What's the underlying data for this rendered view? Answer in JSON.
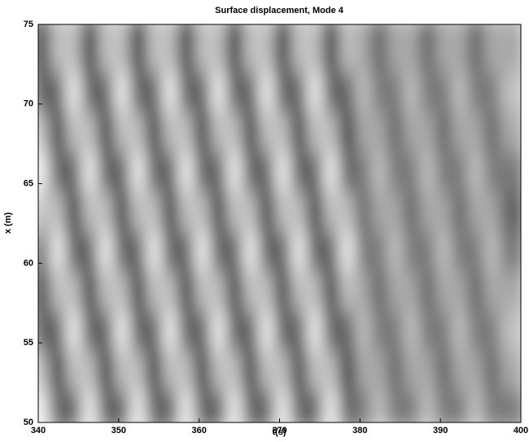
{
  "chart_data": {
    "type": "heatmap",
    "title": "Surface displacement, Mode 4",
    "xlabel": "t(s)",
    "ylabel": "x (m)",
    "x": [
      341,
      343,
      345,
      347,
      349,
      351,
      353,
      355,
      357,
      359,
      361,
      363,
      365,
      367,
      369,
      371,
      373,
      375,
      377,
      379,
      381,
      383,
      385,
      387,
      389,
      391,
      393,
      395,
      397,
      399
    ],
    "y": [
      51.25,
      53.75,
      56.25,
      58.75,
      61.25,
      63.75,
      66.25,
      68.75,
      71.25,
      73.75
    ],
    "z": [
      [
        1,
        -0.5,
        -0.5,
        1,
        -0.5,
        -0.5,
        1,
        -0.5,
        -0.5,
        1,
        -0.5,
        -0.5,
        1,
        -0.5,
        -0.5,
        1,
        -0.5,
        -0.5,
        1,
        -0.5,
        -0.25,
        0.5,
        -0.25,
        -0.25,
        0.5,
        -0.25,
        -0.25,
        0.5,
        -0.25,
        -0.25
      ],
      [
        0.5,
        -1,
        0.5,
        0.5,
        -1,
        0.5,
        0.5,
        -1,
        0.5,
        0.5,
        -1,
        0.5,
        0.5,
        -1,
        0.5,
        0.5,
        -1,
        0.5,
        0.5,
        -1,
        0.25,
        0.25,
        -0.5,
        0.25,
        0.25,
        -0.5,
        0.25,
        0.25,
        -0.5,
        0.25
      ],
      [
        -0.5,
        -0.5,
        1,
        -0.5,
        -0.5,
        1,
        -0.5,
        -0.5,
        1,
        -0.5,
        -0.5,
        1,
        -0.5,
        -0.5,
        1,
        -0.5,
        -0.5,
        1,
        -0.5,
        -0.5,
        0.5,
        -0.25,
        -0.25,
        0.5,
        -0.25,
        -0.25,
        0.5,
        -0.25,
        -0.25,
        0.5
      ],
      [
        -1,
        0.5,
        0.5,
        -1,
        0.5,
        0.5,
        -1,
        0.5,
        0.5,
        -1,
        0.5,
        0.5,
        -1,
        0.5,
        0.5,
        -1,
        0.5,
        0.5,
        -1,
        0.5,
        0.25,
        -0.5,
        0.25,
        0.25,
        -0.5,
        0.25,
        0.25,
        -0.5,
        0.25,
        0.25
      ],
      [
        -0.5,
        1,
        -0.5,
        -0.5,
        1,
        -0.5,
        -0.5,
        1,
        -0.5,
        -0.5,
        1,
        -0.5,
        -0.5,
        1,
        -0.5,
        -0.5,
        1,
        -0.5,
        -0.5,
        1,
        -0.25,
        -0.25,
        0.5,
        -0.25,
        -0.25,
        0.5,
        -0.25,
        -0.25,
        0.5,
        -0.25
      ],
      [
        0.5,
        0.5,
        -1,
        0.5,
        0.5,
        -1,
        0.5,
        0.5,
        -1,
        0.5,
        0.5,
        -1,
        0.5,
        0.5,
        -1,
        0.5,
        0.5,
        -1,
        0.5,
        0.5,
        -0.5,
        0.25,
        0.25,
        -0.5,
        0.25,
        0.25,
        -0.5,
        0.25,
        0.25,
        -0.5
      ],
      [
        1,
        -0.5,
        -0.5,
        1,
        -0.5,
        -0.5,
        1,
        -0.5,
        -0.5,
        1,
        -0.5,
        -0.5,
        1,
        -0.5,
        -0.5,
        1,
        -0.5,
        -0.5,
        1,
        -0.5,
        -0.25,
        0.5,
        -0.25,
        -0.25,
        0.5,
        -0.25,
        -0.25,
        0.5,
        -0.25,
        -0.25
      ],
      [
        0.5,
        -1,
        0.5,
        0.5,
        -1,
        0.5,
        0.5,
        -1,
        0.5,
        0.5,
        -1,
        0.5,
        0.5,
        -1,
        0.5,
        0.5,
        -1,
        0.5,
        0.5,
        -1,
        0.25,
        0.25,
        -0.5,
        0.25,
        0.25,
        -0.5,
        0.25,
        0.25,
        -0.5,
        0.25
      ],
      [
        -0.5,
        -0.5,
        1,
        -0.5,
        -0.5,
        1,
        -0.5,
        -0.5,
        1,
        -0.5,
        -0.5,
        1,
        -0.5,
        -0.5,
        1,
        -0.5,
        -0.5,
        1,
        -0.5,
        -0.5,
        0.5,
        -0.25,
        -0.25,
        0.5,
        -0.25,
        -0.25,
        0.5,
        -0.25,
        -0.25,
        0.5
      ],
      [
        -1,
        0.5,
        0.5,
        -1,
        0.5,
        0.5,
        -1,
        0.5,
        0.5,
        -1,
        0.5,
        0.5,
        -1,
        0.5,
        0.5,
        -1,
        0.5,
        0.5,
        -1,
        0.5,
        0.25,
        -0.5,
        0.25,
        0.25,
        -0.5,
        0.25,
        0.25,
        -0.5,
        0.25,
        0.25
      ]
    ],
    "xlim": [
      340,
      400
    ],
    "xticks": [
      340,
      350,
      360,
      370,
      380,
      390,
      400
    ],
    "ylim": [
      50,
      75
    ],
    "yticks": [
      50,
      55,
      60,
      65,
      70,
      75
    ]
  }
}
